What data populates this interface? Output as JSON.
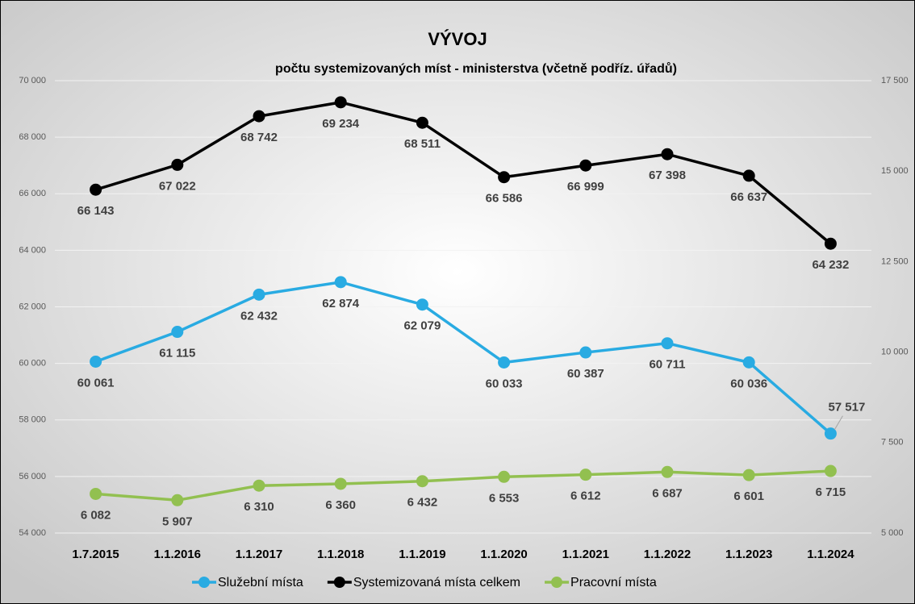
{
  "chart_data": {
    "type": "line",
    "title": "VÝVOJ",
    "subtitle": "počtu systemizovaných míst - ministerstva (včetně podříz. úřadů)",
    "categories": [
      "1.7.2015",
      "1.1.2016",
      "1.1.2017",
      "1.1.2018",
      "1.1.2019",
      "1.1.2020",
      "1.1.2021",
      "1.1.2022",
      "1.1.2023",
      "1.1.2024"
    ],
    "series": [
      {
        "name": "Služební místa",
        "color": "#29abe2",
        "values": [
          60061,
          61115,
          62432,
          62874,
          62079,
          60033,
          60387,
          60711,
          60036,
          57517
        ],
        "value_labels": [
          "60 061",
          "61 115",
          "62 432",
          "62 874",
          "62 079",
          "60 033",
          "60 387",
          "60 711",
          "60 036",
          "57 517"
        ]
      },
      {
        "name": "Systemizovaná místa celkem",
        "color": "#000000",
        "values": [
          66143,
          67022,
          68742,
          69234,
          68511,
          66586,
          66999,
          67398,
          66637,
          64232
        ],
        "value_labels": [
          "66 143",
          "67 022",
          "68 742",
          "69 234",
          "68 511",
          "66 586",
          "66 999",
          "67 398",
          "66 637",
          "64 232"
        ]
      },
      {
        "name": "Pracovní místa",
        "color": "#92c050",
        "axis": "y2",
        "values": [
          6082,
          5907,
          6310,
          6360,
          6432,
          6553,
          6612,
          6687,
          6601,
          6715
        ],
        "value_labels": [
          "6 082",
          "5 907",
          "6 310",
          "6 360",
          "6 432",
          "6 553",
          "6 612",
          "6 687",
          "6 601",
          "6 715"
        ]
      }
    ],
    "ylim": [
      54000,
      70000
    ],
    "yticks": [
      {
        "value": 54000,
        "label": "54 000"
      },
      {
        "value": 56000,
        "label": "56 000"
      },
      {
        "value": 58000,
        "label": "58 000"
      },
      {
        "value": 60000,
        "label": "60 000"
      },
      {
        "value": 62000,
        "label": "62 000"
      },
      {
        "value": 64000,
        "label": "64 000"
      },
      {
        "value": 66000,
        "label": "66 000"
      },
      {
        "value": 68000,
        "label": "68 000"
      },
      {
        "value": 70000,
        "label": "70 000"
      }
    ],
    "y2lim": [
      5000,
      17500
    ],
    "y2ticks": [
      {
        "value": 5000,
        "label": "5 000"
      },
      {
        "value": 7500,
        "label": "7 500"
      },
      {
        "value": 10000,
        "label": "10 000"
      },
      {
        "value": 12500,
        "label": "12 500"
      },
      {
        "value": 15000,
        "label": "15 000"
      },
      {
        "value": 17500,
        "label": "17 500"
      }
    ],
    "grid": true,
    "legend": "bottom"
  }
}
